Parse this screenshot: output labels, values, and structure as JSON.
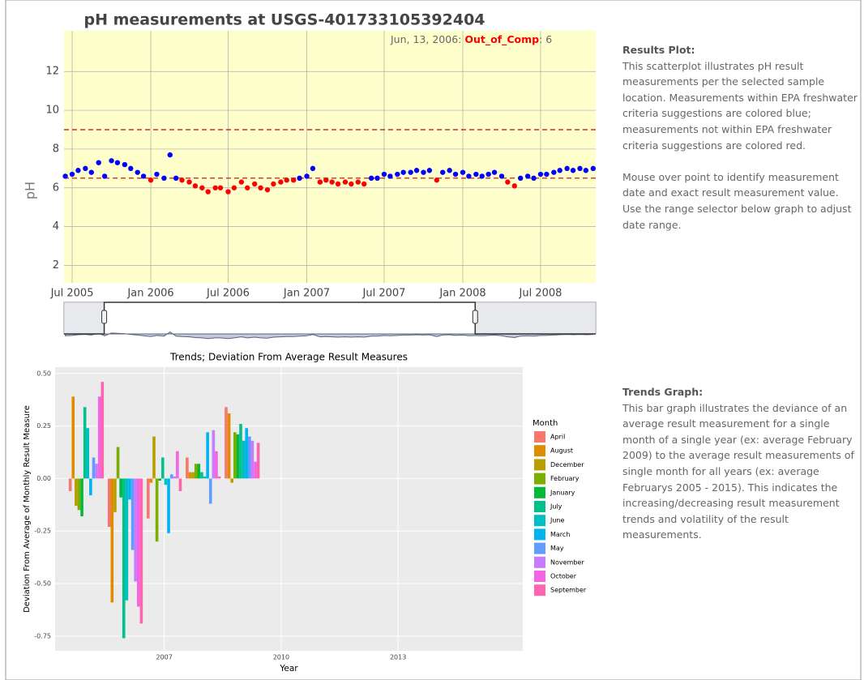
{
  "chart_data": [
    {
      "type": "scatter",
      "title": "pH measurements at USGS-401733105392404",
      "y_label": "pH",
      "x": [
        "2005-06-15",
        "2005-07-01",
        "2005-07-15",
        "2005-08-01",
        "2005-08-15",
        "2005-09-01",
        "2005-09-15",
        "2005-10-01",
        "2005-10-15",
        "2005-11-01",
        "2005-11-15",
        "2005-12-01",
        "2005-12-15",
        "2006-01-01",
        "2006-01-15",
        "2006-02-01",
        "2006-02-15",
        "2006-03-01",
        "2006-03-15",
        "2006-04-01",
        "2006-04-15",
        "2006-05-01",
        "2006-05-15",
        "2006-06-01",
        "2006-06-13",
        "2006-07-01",
        "2006-07-15",
        "2006-08-01",
        "2006-08-15",
        "2006-09-01",
        "2006-09-15",
        "2006-10-01",
        "2006-10-15",
        "2006-11-01",
        "2006-11-15",
        "2006-12-01",
        "2006-12-15",
        "2007-01-01",
        "2007-01-15",
        "2007-02-01",
        "2007-02-15",
        "2007-03-01",
        "2007-03-15",
        "2007-04-01",
        "2007-04-15",
        "2007-05-01",
        "2007-05-15",
        "2007-06-01",
        "2007-06-15",
        "2007-07-01",
        "2007-07-15",
        "2007-08-01",
        "2007-08-15",
        "2007-09-01",
        "2007-09-15",
        "2007-10-01",
        "2007-10-15",
        "2007-11-01",
        "2007-11-15",
        "2007-12-01",
        "2007-12-15",
        "2008-01-01",
        "2008-01-15",
        "2008-02-01",
        "2008-02-15",
        "2008-03-01",
        "2008-03-15",
        "2008-04-01",
        "2008-04-15",
        "2008-05-01",
        "2008-05-15",
        "2008-06-01",
        "2008-06-15",
        "2008-07-01",
        "2008-07-15",
        "2008-08-01",
        "2008-08-15",
        "2008-09-01",
        "2008-09-15",
        "2008-10-01",
        "2008-10-15",
        "2008-11-01"
      ],
      "values": [
        6.6,
        6.7,
        6.9,
        7.0,
        6.8,
        7.3,
        6.6,
        7.4,
        7.3,
        7.2,
        7.0,
        6.8,
        6.6,
        6.4,
        6.7,
        6.5,
        7.7,
        6.5,
        6.4,
        6.3,
        6.1,
        6.0,
        5.8,
        6.0,
        6.0,
        5.8,
        6.0,
        6.3,
        6.0,
        6.2,
        6.0,
        5.9,
        6.2,
        6.3,
        6.4,
        6.4,
        6.5,
        6.6,
        7.0,
        6.3,
        6.4,
        6.3,
        6.2,
        6.3,
        6.2,
        6.3,
        6.2,
        6.5,
        6.5,
        6.7,
        6.6,
        6.7,
        6.8,
        6.8,
        6.9,
        6.8,
        6.9,
        6.4,
        6.8,
        6.9,
        6.7,
        6.8,
        6.6,
        6.7,
        6.6,
        6.7,
        6.8,
        6.6,
        6.3,
        6.1,
        6.5,
        6.6,
        6.5,
        6.7,
        6.7,
        6.8,
        6.9,
        7.0,
        6.9,
        7.0,
        6.9,
        7.0
      ],
      "colors": {
        "within": "#0000ff",
        "outside": "#ff0000"
      },
      "hlines": [
        6.5,
        9
      ],
      "hline_color": "#cc0000",
      "xlim": [
        "2005-06-12",
        "2008-11-07"
      ],
      "xticks": [
        {
          "value": "2005-07-01",
          "label": "Jul 2005"
        },
        {
          "value": "2006-01-01",
          "label": "Jan 2006"
        },
        {
          "value": "2006-07-01",
          "label": "Jul 2006"
        },
        {
          "value": "2007-01-01",
          "label": "Jan 2007"
        },
        {
          "value": "2007-07-01",
          "label": "Jul 2007"
        },
        {
          "value": "2008-01-01",
          "label": "Jan 2008"
        },
        {
          "value": "2008-07-01",
          "label": "Jul 2008"
        }
      ],
      "ylim": [
        1.1,
        14.1
      ],
      "yticks": [
        2,
        4,
        6,
        8,
        10,
        12
      ],
      "grid": true,
      "background": "#ffffcc",
      "range_window": [
        "2005-09-14",
        "2008-01-30"
      ],
      "hover": {
        "date": "Jun, 13, 2006:",
        "status": "Out_of_Comp",
        "value_label": ": 6",
        "value": 6
      }
    },
    {
      "type": "bar",
      "title": "Trends; Deviation From Average Result Measures",
      "x_label": "Year",
      "y_label": "Deviation From Average of Monthly Result Measure",
      "x": [
        2005,
        2006,
        2007,
        2008,
        2009
      ],
      "legend_title": "Month",
      "series": [
        {
          "name": "April",
          "color": "#F8766D",
          "values": [
            -0.06,
            -0.23,
            -0.19,
            0.1,
            0.34
          ]
        },
        {
          "name": "August",
          "color": "#DE8C00",
          "values": [
            0.39,
            -0.59,
            -0.02,
            0.03,
            0.31
          ]
        },
        {
          "name": "December",
          "color": "#B79F00",
          "values": [
            -0.13,
            -0.16,
            0.2,
            0.03,
            -0.02
          ]
        },
        {
          "name": "February",
          "color": "#7CAE00",
          "values": [
            -0.15,
            0.15,
            -0.3,
            0.07,
            0.22
          ]
        },
        {
          "name": "January",
          "color": "#00BA38",
          "values": [
            -0.18,
            -0.09,
            -0.01,
            0.07,
            0.21
          ]
        },
        {
          "name": "July",
          "color": "#00C08B",
          "values": [
            0.34,
            -0.76,
            0.1,
            0.03,
            0.26
          ]
        },
        {
          "name": "June",
          "color": "#00BFC4",
          "values": [
            0.24,
            -0.58,
            -0.03,
            0.01,
            0.18
          ]
        },
        {
          "name": "March",
          "color": "#00B4F0",
          "values": [
            -0.08,
            -0.1,
            -0.26,
            0.22,
            0.24
          ]
        },
        {
          "name": "May",
          "color": "#619CFF",
          "values": [
            0.1,
            -0.34,
            0.02,
            -0.12,
            0.2
          ]
        },
        {
          "name": "November",
          "color": "#C77CFF",
          "values": [
            0.07,
            -0.49,
            0.01,
            0.23,
            0.18
          ]
        },
        {
          "name": "October",
          "color": "#F564E3",
          "values": [
            0.39,
            -0.61,
            0.13,
            0.13,
            0.08
          ]
        },
        {
          "name": "September",
          "color": "#FF64B0",
          "values": [
            0.46,
            -0.69,
            -0.06,
            0.01,
            0.17
          ]
        }
      ],
      "xlim": [
        2004.2,
        2016.2
      ],
      "xticks": [
        2007,
        2010,
        2013
      ],
      "ylim": [
        -0.82,
        0.53
      ],
      "yticks": [
        -0.75,
        {
          "value": -0.5,
          "label": "-0.50"
        },
        -0.25,
        {
          "value": 0,
          "label": "0.00"
        },
        0.25,
        {
          "value": 0.5,
          "label": "0.50"
        }
      ],
      "grid": true,
      "background": "#ebebeb"
    }
  ],
  "sidebar": [
    {
      "heading": "Results Plot:",
      "paragraphs": [
        "This scatterplot illustrates pH result measurements per the selected sample location. Measurements within EPA freshwater criteria suggestions are colored blue; measurements not within EPA freshwater criteria suggestions are colored red.",
        "Mouse over point to identify measurement date and exact result measurement value. Use the range selector below graph to adjust date range."
      ]
    },
    {
      "heading": "Trends Graph:",
      "paragraphs": [
        "This bar graph illustrates the deviance of an average result measurement for a single month of a single year (ex: average February 2009) to the average result measurements of single month for all years (ex: average Februarys 2005 - 2015). This indicates the increasing/decreasing result measurement trends and volatility of the result measurements."
      ]
    }
  ]
}
